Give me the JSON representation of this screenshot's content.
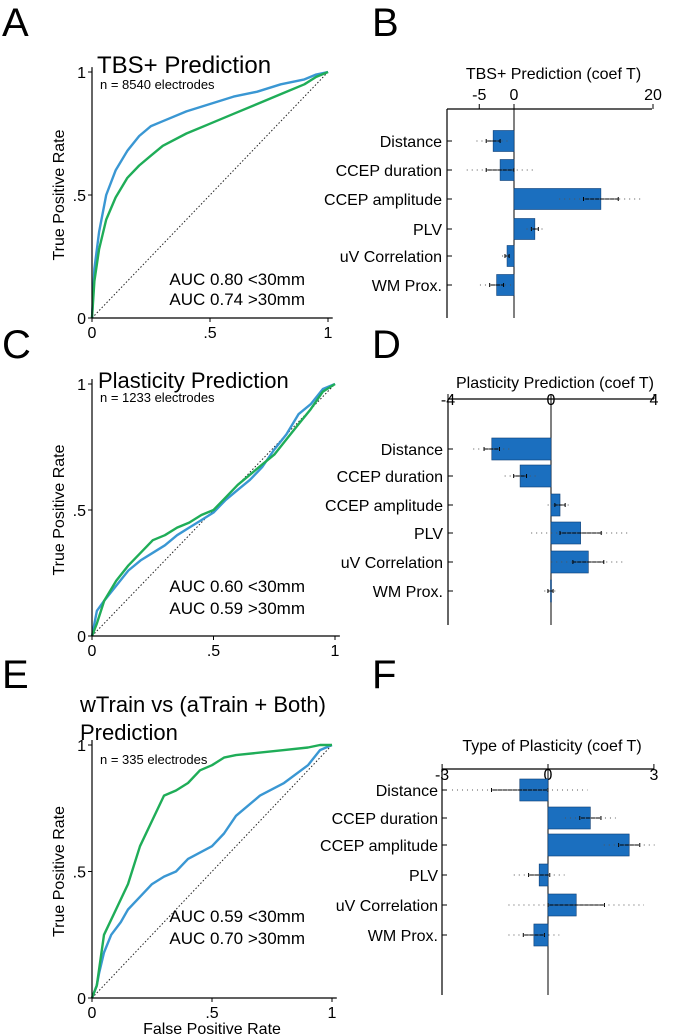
{
  "figure": {
    "panel_letters": [
      "A",
      "B",
      "C",
      "D",
      "E",
      "F"
    ],
    "colors": {
      "near": "#3a97d3",
      "far": "#1fad58",
      "bar": "#1b6fbf",
      "text": "#000000"
    }
  },
  "chart_data": [
    {
      "panel": "A",
      "type": "line",
      "title": "TBS+ Prediction",
      "subtitle": "n = 8540 electrodes",
      "xlabel": "",
      "ylabel": "True Positive Rate",
      "xlim": [
        0,
        1
      ],
      "ylim": [
        0,
        1
      ],
      "xticks": [
        "0",
        ".5",
        "1"
      ],
      "yticks": [
        "0",
        ".5",
        "1"
      ],
      "legend": [
        "AUC 0.80 <30mm",
        "AUC 0.74 >30mm"
      ],
      "series": [
        {
          "name": "AUC 0.80 <30mm",
          "color": "#3a97d3",
          "x": [
            0,
            0.01,
            0.03,
            0.06,
            0.1,
            0.15,
            0.2,
            0.25,
            0.3,
            0.4,
            0.5,
            0.6,
            0.7,
            0.8,
            0.9,
            0.95,
            1
          ],
          "y": [
            0,
            0.2,
            0.35,
            0.5,
            0.6,
            0.68,
            0.74,
            0.78,
            0.8,
            0.84,
            0.87,
            0.9,
            0.92,
            0.95,
            0.97,
            0.99,
            1
          ]
        },
        {
          "name": "AUC 0.74 >30mm",
          "color": "#1fad58",
          "x": [
            0,
            0.01,
            0.03,
            0.06,
            0.1,
            0.15,
            0.2,
            0.25,
            0.3,
            0.4,
            0.5,
            0.6,
            0.7,
            0.8,
            0.9,
            0.95,
            1
          ],
          "y": [
            0,
            0.15,
            0.28,
            0.4,
            0.49,
            0.57,
            0.62,
            0.66,
            0.7,
            0.75,
            0.79,
            0.83,
            0.87,
            0.91,
            0.95,
            0.98,
            1
          ]
        }
      ]
    },
    {
      "panel": "B",
      "type": "bar",
      "title": "TBS+ Prediction (coef T)",
      "xlim": [
        -10,
        20
      ],
      "xticks": [
        -5,
        0,
        20
      ],
      "categories": [
        "Distance",
        "CCEP duration",
        "CCEP amplitude",
        "PLV",
        "uV Correlation",
        "WM Prox."
      ],
      "values": [
        -3,
        -2,
        12.5,
        3,
        -1,
        -2.5
      ],
      "errors": [
        1,
        2,
        2.5,
        0.5,
        0.3,
        1
      ]
    },
    {
      "panel": "C",
      "type": "line",
      "title": "Plasticity Prediction",
      "subtitle": "n = 1233 electrodes",
      "xlabel": "",
      "ylabel": "True Positive Rate",
      "xlim": [
        0,
        1
      ],
      "ylim": [
        0,
        1
      ],
      "xticks": [
        "0",
        ".5",
        "1"
      ],
      "yticks": [
        "0",
        ".5",
        "1"
      ],
      "legend": [
        "AUC 0.60 <30mm",
        "AUC 0.59 >30mm"
      ],
      "series": [
        {
          "name": "AUC 0.60 <30mm",
          "color": "#3a97d3",
          "x": [
            0,
            0.02,
            0.05,
            0.1,
            0.15,
            0.2,
            0.25,
            0.3,
            0.35,
            0.4,
            0.45,
            0.5,
            0.55,
            0.6,
            0.65,
            0.7,
            0.75,
            0.8,
            0.85,
            0.9,
            0.95,
            1
          ],
          "y": [
            0,
            0.1,
            0.14,
            0.2,
            0.26,
            0.3,
            0.33,
            0.36,
            0.4,
            0.43,
            0.46,
            0.49,
            0.54,
            0.58,
            0.62,
            0.67,
            0.74,
            0.8,
            0.88,
            0.92,
            0.98,
            1
          ]
        },
        {
          "name": "AUC 0.59 >30mm",
          "color": "#1fad58",
          "x": [
            0,
            0.02,
            0.05,
            0.1,
            0.15,
            0.2,
            0.25,
            0.3,
            0.35,
            0.4,
            0.45,
            0.5,
            0.55,
            0.6,
            0.65,
            0.7,
            0.75,
            0.8,
            0.85,
            0.9,
            0.95,
            1
          ],
          "y": [
            0,
            0.05,
            0.14,
            0.22,
            0.28,
            0.33,
            0.38,
            0.4,
            0.43,
            0.45,
            0.48,
            0.5,
            0.55,
            0.6,
            0.64,
            0.68,
            0.72,
            0.78,
            0.84,
            0.9,
            0.97,
            1
          ]
        }
      ]
    },
    {
      "panel": "D",
      "type": "bar",
      "title": "Plasticity Prediction (coef T)",
      "xlim": [
        -4,
        4
      ],
      "xticks": [
        -4,
        0,
        4
      ],
      "categories": [
        "Distance",
        "CCEP duration",
        "CCEP amplitude",
        "PLV",
        "uV Correlation",
        "WM Prox."
      ],
      "values": [
        -2.3,
        -1.2,
        0.35,
        1.15,
        1.45,
        -0.02
      ],
      "errors": [
        0.3,
        0.25,
        0.2,
        0.8,
        0.6,
        0.1
      ]
    },
    {
      "panel": "E",
      "type": "line",
      "title": "wTrain vs (aTrain + Both) Prediction",
      "title_lines": [
        "wTrain vs (aTrain + Both)",
        "Prediction"
      ],
      "subtitle": "n = 335 electrodes",
      "xlabel": "False Positive Rate",
      "ylabel": "True Positive Rate",
      "xlim": [
        0,
        1
      ],
      "ylim": [
        0,
        1
      ],
      "xticks": [
        "0",
        ".5",
        "1"
      ],
      "yticks": [
        "0",
        ".5",
        "1"
      ],
      "legend": [
        "AUC 0.59 <30mm",
        "AUC 0.70 >30mm"
      ],
      "series": [
        {
          "name": "AUC 0.59 <30mm",
          "color": "#3a97d3",
          "x": [
            0,
            0.02,
            0.03,
            0.05,
            0.08,
            0.12,
            0.15,
            0.2,
            0.25,
            0.3,
            0.35,
            0.4,
            0.5,
            0.55,
            0.6,
            0.7,
            0.8,
            0.9,
            0.95,
            1
          ],
          "y": [
            0,
            0.05,
            0.1,
            0.18,
            0.25,
            0.3,
            0.35,
            0.4,
            0.45,
            0.48,
            0.5,
            0.55,
            0.6,
            0.65,
            0.72,
            0.8,
            0.85,
            0.92,
            0.98,
            1
          ]
        },
        {
          "name": "AUC 0.70 >30mm",
          "color": "#1fad58",
          "x": [
            0,
            0.02,
            0.05,
            0.1,
            0.15,
            0.2,
            0.25,
            0.3,
            0.35,
            0.4,
            0.45,
            0.5,
            0.55,
            0.6,
            0.7,
            0.8,
            0.9,
            0.95,
            1
          ],
          "y": [
            0,
            0.05,
            0.25,
            0.35,
            0.45,
            0.6,
            0.7,
            0.8,
            0.82,
            0.85,
            0.9,
            0.92,
            0.95,
            0.96,
            0.97,
            0.98,
            0.99,
            1,
            1
          ]
        }
      ]
    },
    {
      "panel": "F",
      "type": "bar",
      "title": "Type of Plasticity (coef T)",
      "xlim": [
        -3,
        3
      ],
      "xticks": [
        -3,
        0,
        3
      ],
      "categories": [
        "Distance",
        "CCEP duration",
        "CCEP amplitude",
        "PLV",
        "uV Correlation",
        "WM Prox."
      ],
      "values": [
        -0.8,
        1.2,
        2.3,
        -0.25,
        0.8,
        -0.4
      ],
      "errors": [
        0.8,
        0.3,
        0.3,
        0.3,
        0.8,
        0.3
      ]
    }
  ]
}
